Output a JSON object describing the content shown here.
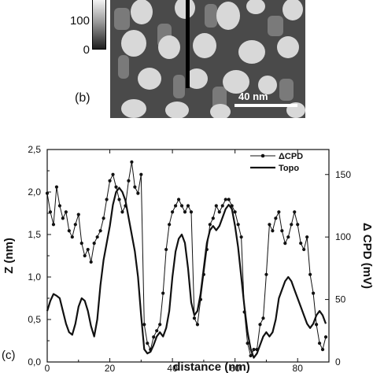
{
  "panel_b": {
    "label": "(b)",
    "colorbar_ticks": [
      "100",
      "0"
    ],
    "scalebar_label": "40 nm"
  },
  "chart_data": {
    "type": "line",
    "panel_label": "(c)",
    "xlabel": "distance  (nm)",
    "ylabel": "Z (nm)",
    "ylabel_right": "Δ CPD  (mV)",
    "xlim": [
      0,
      90
    ],
    "ylim": [
      0,
      2.5
    ],
    "ylim_right": [
      0,
      170
    ],
    "x_ticks": [
      "0",
      "20",
      "40",
      "60",
      "80"
    ],
    "y_ticks": [
      "0,0",
      "0,5",
      "1,0",
      "1,5",
      "2,0",
      "2,5"
    ],
    "y_ticks_right": [
      "0",
      "50",
      "100",
      "150"
    ],
    "legend_position": "top-right",
    "colors": {
      "line": "#111111"
    },
    "series": [
      {
        "name": "ΔCPD",
        "axis": "right",
        "marker": "circle",
        "x": [
          0,
          1,
          2,
          3,
          4,
          5,
          6,
          7,
          8,
          9,
          10,
          11,
          12,
          13,
          14,
          15,
          16,
          17,
          18,
          19,
          20,
          21,
          22,
          23,
          24,
          25,
          26,
          27,
          28,
          29,
          30,
          31,
          32,
          33,
          34,
          35,
          36,
          37,
          38,
          39,
          40,
          41,
          42,
          43,
          44,
          45,
          46,
          47,
          48,
          49,
          50,
          51,
          52,
          53,
          54,
          55,
          56,
          57,
          58,
          59,
          60,
          61,
          62,
          63,
          64,
          65,
          66,
          67,
          68,
          69,
          70,
          71,
          72,
          73,
          74,
          75,
          76,
          77,
          78,
          79,
          80,
          81,
          82,
          83,
          84,
          85,
          86,
          87,
          88,
          89
        ],
        "values": [
          135,
          120,
          110,
          140,
          125,
          115,
          120,
          105,
          100,
          110,
          118,
          95,
          85,
          90,
          80,
          95,
          100,
          105,
          115,
          130,
          145,
          150,
          140,
          130,
          120,
          125,
          145,
          160,
          140,
          135,
          150,
          30,
          15,
          10,
          20,
          25,
          30,
          55,
          90,
          110,
          120,
          125,
          130,
          125,
          120,
          125,
          120,
          35,
          30,
          50,
          70,
          90,
          110,
          115,
          125,
          120,
          125,
          130,
          130,
          125,
          120,
          110,
          100,
          40,
          15,
          5,
          10,
          10,
          30,
          35,
          70,
          110,
          105,
          115,
          120,
          105,
          95,
          100,
          110,
          120,
          110,
          95,
          90,
          100,
          70,
          55,
          30,
          15,
          10,
          20
        ]
      },
      {
        "name": "Topo",
        "axis": "left",
        "marker": "none",
        "x": [
          0,
          1,
          2,
          3,
          4,
          5,
          6,
          7,
          8,
          9,
          10,
          11,
          12,
          13,
          14,
          15,
          16,
          17,
          18,
          19,
          20,
          21,
          22,
          23,
          24,
          25,
          26,
          27,
          28,
          29,
          30,
          31,
          32,
          33,
          34,
          35,
          36,
          37,
          38,
          39,
          40,
          41,
          42,
          43,
          44,
          45,
          46,
          47,
          48,
          49,
          50,
          51,
          52,
          53,
          54,
          55,
          56,
          57,
          58,
          59,
          60,
          61,
          62,
          63,
          64,
          65,
          66,
          67,
          68,
          69,
          70,
          71,
          72,
          73,
          74,
          75,
          76,
          77,
          78,
          79,
          80,
          81,
          82,
          83,
          84,
          85,
          86,
          87,
          88,
          89
        ],
        "values": [
          0.6,
          0.72,
          0.8,
          0.78,
          0.75,
          0.6,
          0.45,
          0.35,
          0.32,
          0.45,
          0.65,
          0.75,
          0.72,
          0.6,
          0.42,
          0.3,
          0.5,
          0.9,
          1.2,
          1.4,
          1.6,
          1.85,
          2.0,
          2.05,
          2.0,
          1.9,
          1.7,
          1.5,
          1.3,
          1.0,
          0.55,
          0.15,
          0.1,
          0.12,
          0.2,
          0.3,
          0.35,
          0.3,
          0.4,
          0.6,
          1.0,
          1.3,
          1.45,
          1.5,
          1.4,
          1.1,
          0.7,
          0.55,
          0.6,
          0.8,
          1.1,
          1.4,
          1.55,
          1.6,
          1.55,
          1.6,
          1.7,
          1.8,
          1.85,
          1.8,
          1.6,
          1.35,
          1.0,
          0.65,
          0.35,
          0.15,
          0.05,
          0.1,
          0.2,
          0.3,
          0.35,
          0.3,
          0.35,
          0.5,
          0.75,
          0.85,
          0.95,
          1.0,
          0.95,
          0.85,
          0.75,
          0.65,
          0.55,
          0.45,
          0.4,
          0.45,
          0.55,
          0.6,
          0.55,
          0.45
        ]
      }
    ]
  }
}
